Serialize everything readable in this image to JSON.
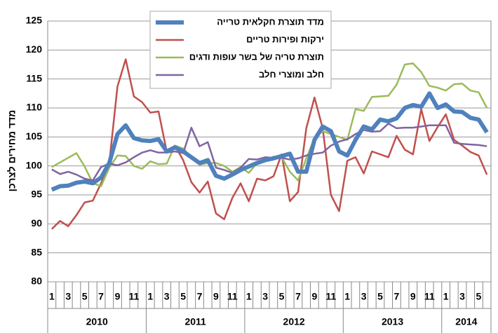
{
  "chart_data": {
    "type": "line",
    "y_label": "מדד מחירים לצרכן",
    "categories": [
      "1",
      null,
      "3",
      null,
      "5",
      null,
      "7",
      null,
      "9",
      null,
      "11",
      null,
      "1",
      null,
      "3",
      null,
      "5",
      null,
      "7",
      null,
      "9",
      null,
      "11",
      null,
      "1",
      null,
      "3",
      null,
      "5",
      null,
      "7",
      null,
      "9",
      null,
      "11",
      null,
      "1",
      null,
      "3",
      null,
      "5",
      null,
      "7",
      null,
      "9",
      null,
      "11",
      null,
      "1",
      null,
      "3",
      null,
      "5",
      null
    ],
    "years": [
      "2010",
      "2011",
      "2012",
      "2013",
      "2014"
    ],
    "ylim": [
      80,
      125
    ],
    "yticks": [
      80,
      85,
      90,
      95,
      100,
      105,
      110,
      115,
      120,
      125
    ],
    "grid": true,
    "series": [
      {
        "name": "מדד תוצרת חקלאית טרייה",
        "color": "#4f81bd",
        "width": 6,
        "values": [
          95.9,
          96.5,
          96.6,
          97.1,
          97.3,
          97.0,
          98.0,
          100.5,
          105.5,
          107.0,
          104.8,
          104.4,
          104.3,
          104.6,
          102.5,
          103.2,
          102.5,
          101.5,
          100.5,
          101.0,
          98.3,
          97.8,
          98.5,
          99.3,
          99.9,
          100.5,
          101.0,
          101.3,
          101.7,
          102.1,
          99.0,
          99.0,
          104.5,
          106.8,
          106.0,
          102.5,
          101.8,
          104.5,
          106.8,
          106.3,
          108.0,
          107.7,
          108.2,
          110.0,
          110.5,
          110.2,
          112.5,
          110.0,
          110.6,
          109.4,
          109.3,
          108.3,
          108.0,
          105.8
        ]
      },
      {
        "name": "ירקות ופירות טריים",
        "color": "#c0504d",
        "width": 2.5,
        "values": [
          89.1,
          90.5,
          89.6,
          91.5,
          93.7,
          94.0,
          97.0,
          100.5,
          113.7,
          118.4,
          112.0,
          111.0,
          109.2,
          109.4,
          102.5,
          103.5,
          101.0,
          97.2,
          95.4,
          97.3,
          91.8,
          90.8,
          94.5,
          97.0,
          93.9,
          97.8,
          97.5,
          98.2,
          102.0,
          93.9,
          95.5,
          106.5,
          111.8,
          106.5,
          95.0,
          92.2,
          100.9,
          101.5,
          98.7,
          102.5,
          102.0,
          101.5,
          105.2,
          102.8,
          102.0,
          109.8,
          104.3,
          106.7,
          108.9,
          104.5,
          103.5,
          102.4,
          101.8,
          98.5
        ]
      },
      {
        "name": "תוצרת טריה של בשר עופות ודגים",
        "color": "#9bbb59",
        "width": 2.5,
        "values": [
          99.8,
          100.6,
          101.4,
          102.2,
          99.9,
          97.0,
          96.5,
          99.7,
          101.8,
          101.7,
          100.0,
          99.5,
          100.8,
          100.3,
          100.4,
          103.5,
          103.0,
          101.5,
          100.2,
          100.5,
          100.5,
          100.0,
          99.0,
          99.8,
          98.8,
          100.5,
          101.0,
          101.6,
          101.5,
          99.0,
          97.5,
          101.3,
          104.8,
          106.0,
          105.5,
          105.0,
          104.5,
          109.8,
          109.5,
          111.9,
          112.0,
          112.1,
          114.0,
          117.5,
          117.7,
          116.2,
          113.8,
          113.5,
          113.0,
          114.1,
          114.2,
          113.0,
          112.7,
          110.0
        ]
      },
      {
        "name": "חלב ומוצרי חלב",
        "color": "#8064a2",
        "width": 2.5,
        "values": [
          99.4,
          98.6,
          99.0,
          98.5,
          97.8,
          97.5,
          99.8,
          100.4,
          100.1,
          100.6,
          101.5,
          102.3,
          102.7,
          102.3,
          102.3,
          102.5,
          102.2,
          106.6,
          103.4,
          104.1,
          99.7,
          99.3,
          98.8,
          99.7,
          101.2,
          101.1,
          101.5,
          101.4,
          101.4,
          101.1,
          101.3,
          101.8,
          102.1,
          102.3,
          103.5,
          104.2,
          104.6,
          105.5,
          106.2,
          105.9,
          106.0,
          107.3,
          106.5,
          106.6,
          106.6,
          106.8,
          107.0,
          107.0,
          107.0,
          104.0,
          103.8,
          103.7,
          103.6,
          103.4
        ]
      }
    ]
  }
}
